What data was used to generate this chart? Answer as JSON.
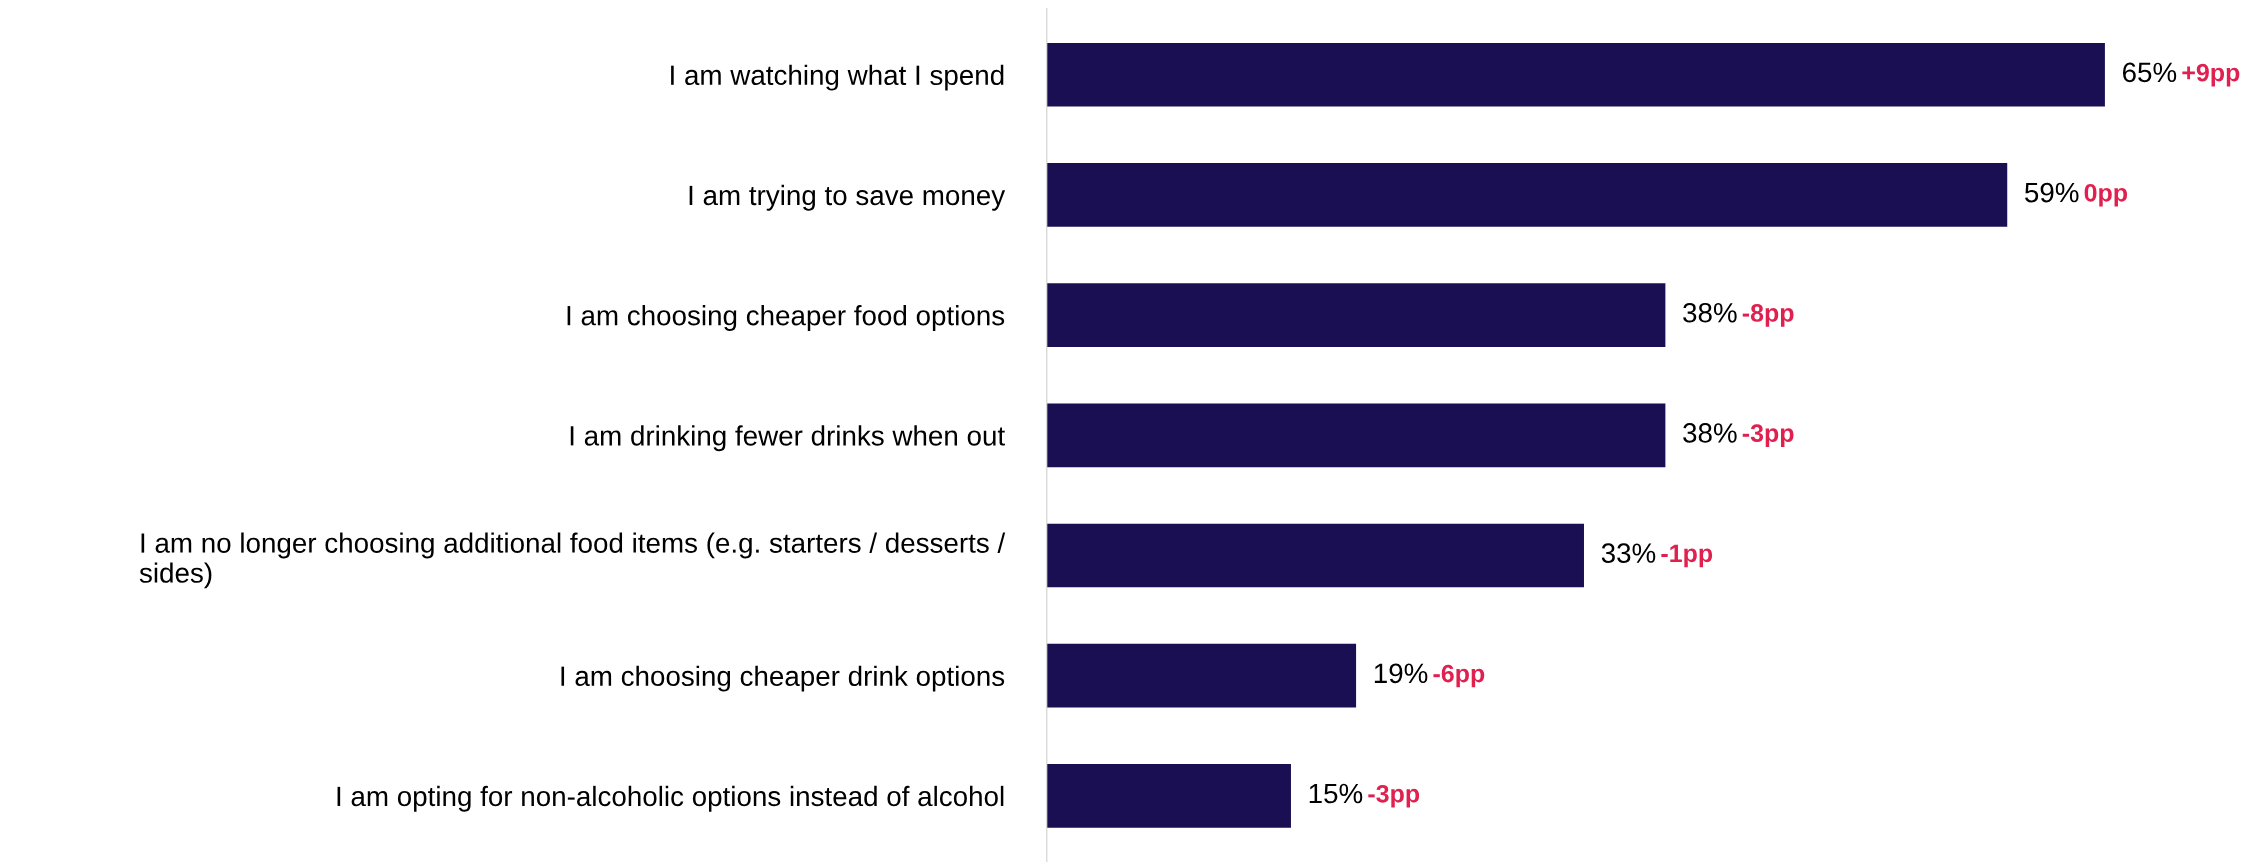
{
  "chart_data": {
    "type": "bar",
    "orientation": "horizontal",
    "categories": [
      "I am watching what I spend",
      "I am trying to save money",
      "I am choosing cheaper food options",
      "I am drinking fewer drinks when out",
      "I am no longer choosing additional food items (e.g. starters / desserts /\nsides)",
      "I am choosing cheaper drink options",
      "I am opting for non-alcoholic options instead of alcohol"
    ],
    "values": [
      65,
      59,
      38,
      38,
      33,
      19,
      15
    ],
    "color": "#1a0f52",
    "value_labels": [
      "65%",
      "59%",
      "38%",
      "38%",
      "33%",
      "19%",
      "15%"
    ],
    "annotations": [
      "+9pp",
      "0pp",
      "-8pp",
      "-3pp",
      "-1pp",
      "-6pp",
      "-3pp"
    ],
    "tick_labels": "y",
    "grid": false,
    "legend": false
  }
}
